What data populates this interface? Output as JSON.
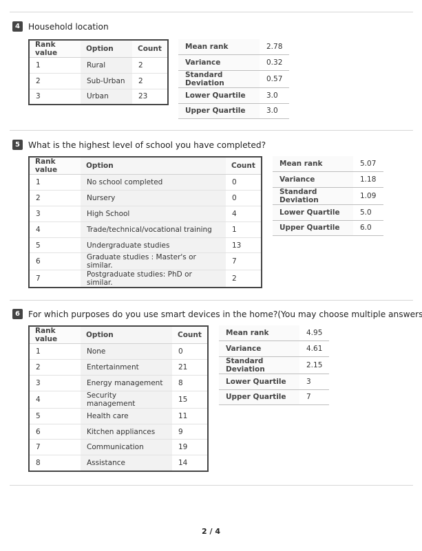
{
  "sections": [
    {
      "number": "4",
      "title": "Household location",
      "rank_headers": [
        "Rank value",
        "Option",
        "Count"
      ],
      "rows": [
        [
          "1",
          "Rural",
          "2"
        ],
        [
          "2",
          "Sub-Urban",
          "2"
        ],
        [
          "3",
          "Urban",
          "23"
        ]
      ],
      "stats": [
        [
          "Mean rank",
          "2.78"
        ],
        [
          "Variance",
          "0.32"
        ],
        [
          "Standard Deviation",
          "0.57"
        ],
        [
          "Lower Quartile",
          "3.0"
        ],
        [
          "Upper Quartile",
          "3.0"
        ]
      ]
    },
    {
      "number": "5",
      "title": "What is the highest level of school you have completed?",
      "rank_headers": [
        "Rank value",
        "Option",
        "Count"
      ],
      "rows": [
        [
          "1",
          "No school completed",
          "0"
        ],
        [
          "2",
          "Nursery",
          "0"
        ],
        [
          "3",
          "High School",
          "4"
        ],
        [
          "4",
          "Trade/technical/vocational training",
          "1"
        ],
        [
          "5",
          "Undergraduate studies",
          "13"
        ],
        [
          "6",
          "Graduate studies : Master's or similar.",
          "7"
        ],
        [
          "7",
          "Postgraduate studies: PhD or similar.",
          "2"
        ]
      ],
      "stats": [
        [
          "Mean rank",
          "5.07"
        ],
        [
          "Variance",
          "1.18"
        ],
        [
          "Standard Deviation",
          "1.09"
        ],
        [
          "Lower Quartile",
          "5.0"
        ],
        [
          "Upper Quartile",
          "6.0"
        ]
      ]
    },
    {
      "number": "6",
      "title": "For which purposes do you use smart devices in the home?(You may choose multiple answers)",
      "rank_headers": [
        "Rank value",
        "Option",
        "Count"
      ],
      "rows": [
        [
          "1",
          "None",
          "0"
        ],
        [
          "2",
          "Entertainment",
          "21"
        ],
        [
          "3",
          "Energy management",
          "8"
        ],
        [
          "4",
          "Security management",
          "15"
        ],
        [
          "5",
          "Health care",
          "11"
        ],
        [
          "6",
          "Kitchen appliances",
          "9"
        ],
        [
          "7",
          "Communication",
          "19"
        ],
        [
          "8",
          "Assistance",
          "14"
        ]
      ],
      "stats": [
        [
          "Mean rank",
          "4.95"
        ],
        [
          "Variance",
          "4.61"
        ],
        [
          "Standard Deviation",
          "2.15"
        ],
        [
          "Lower Quartile",
          "3"
        ],
        [
          "Upper Quartile",
          "7"
        ]
      ]
    }
  ],
  "footer": {
    "page_label": "2 / 4"
  }
}
